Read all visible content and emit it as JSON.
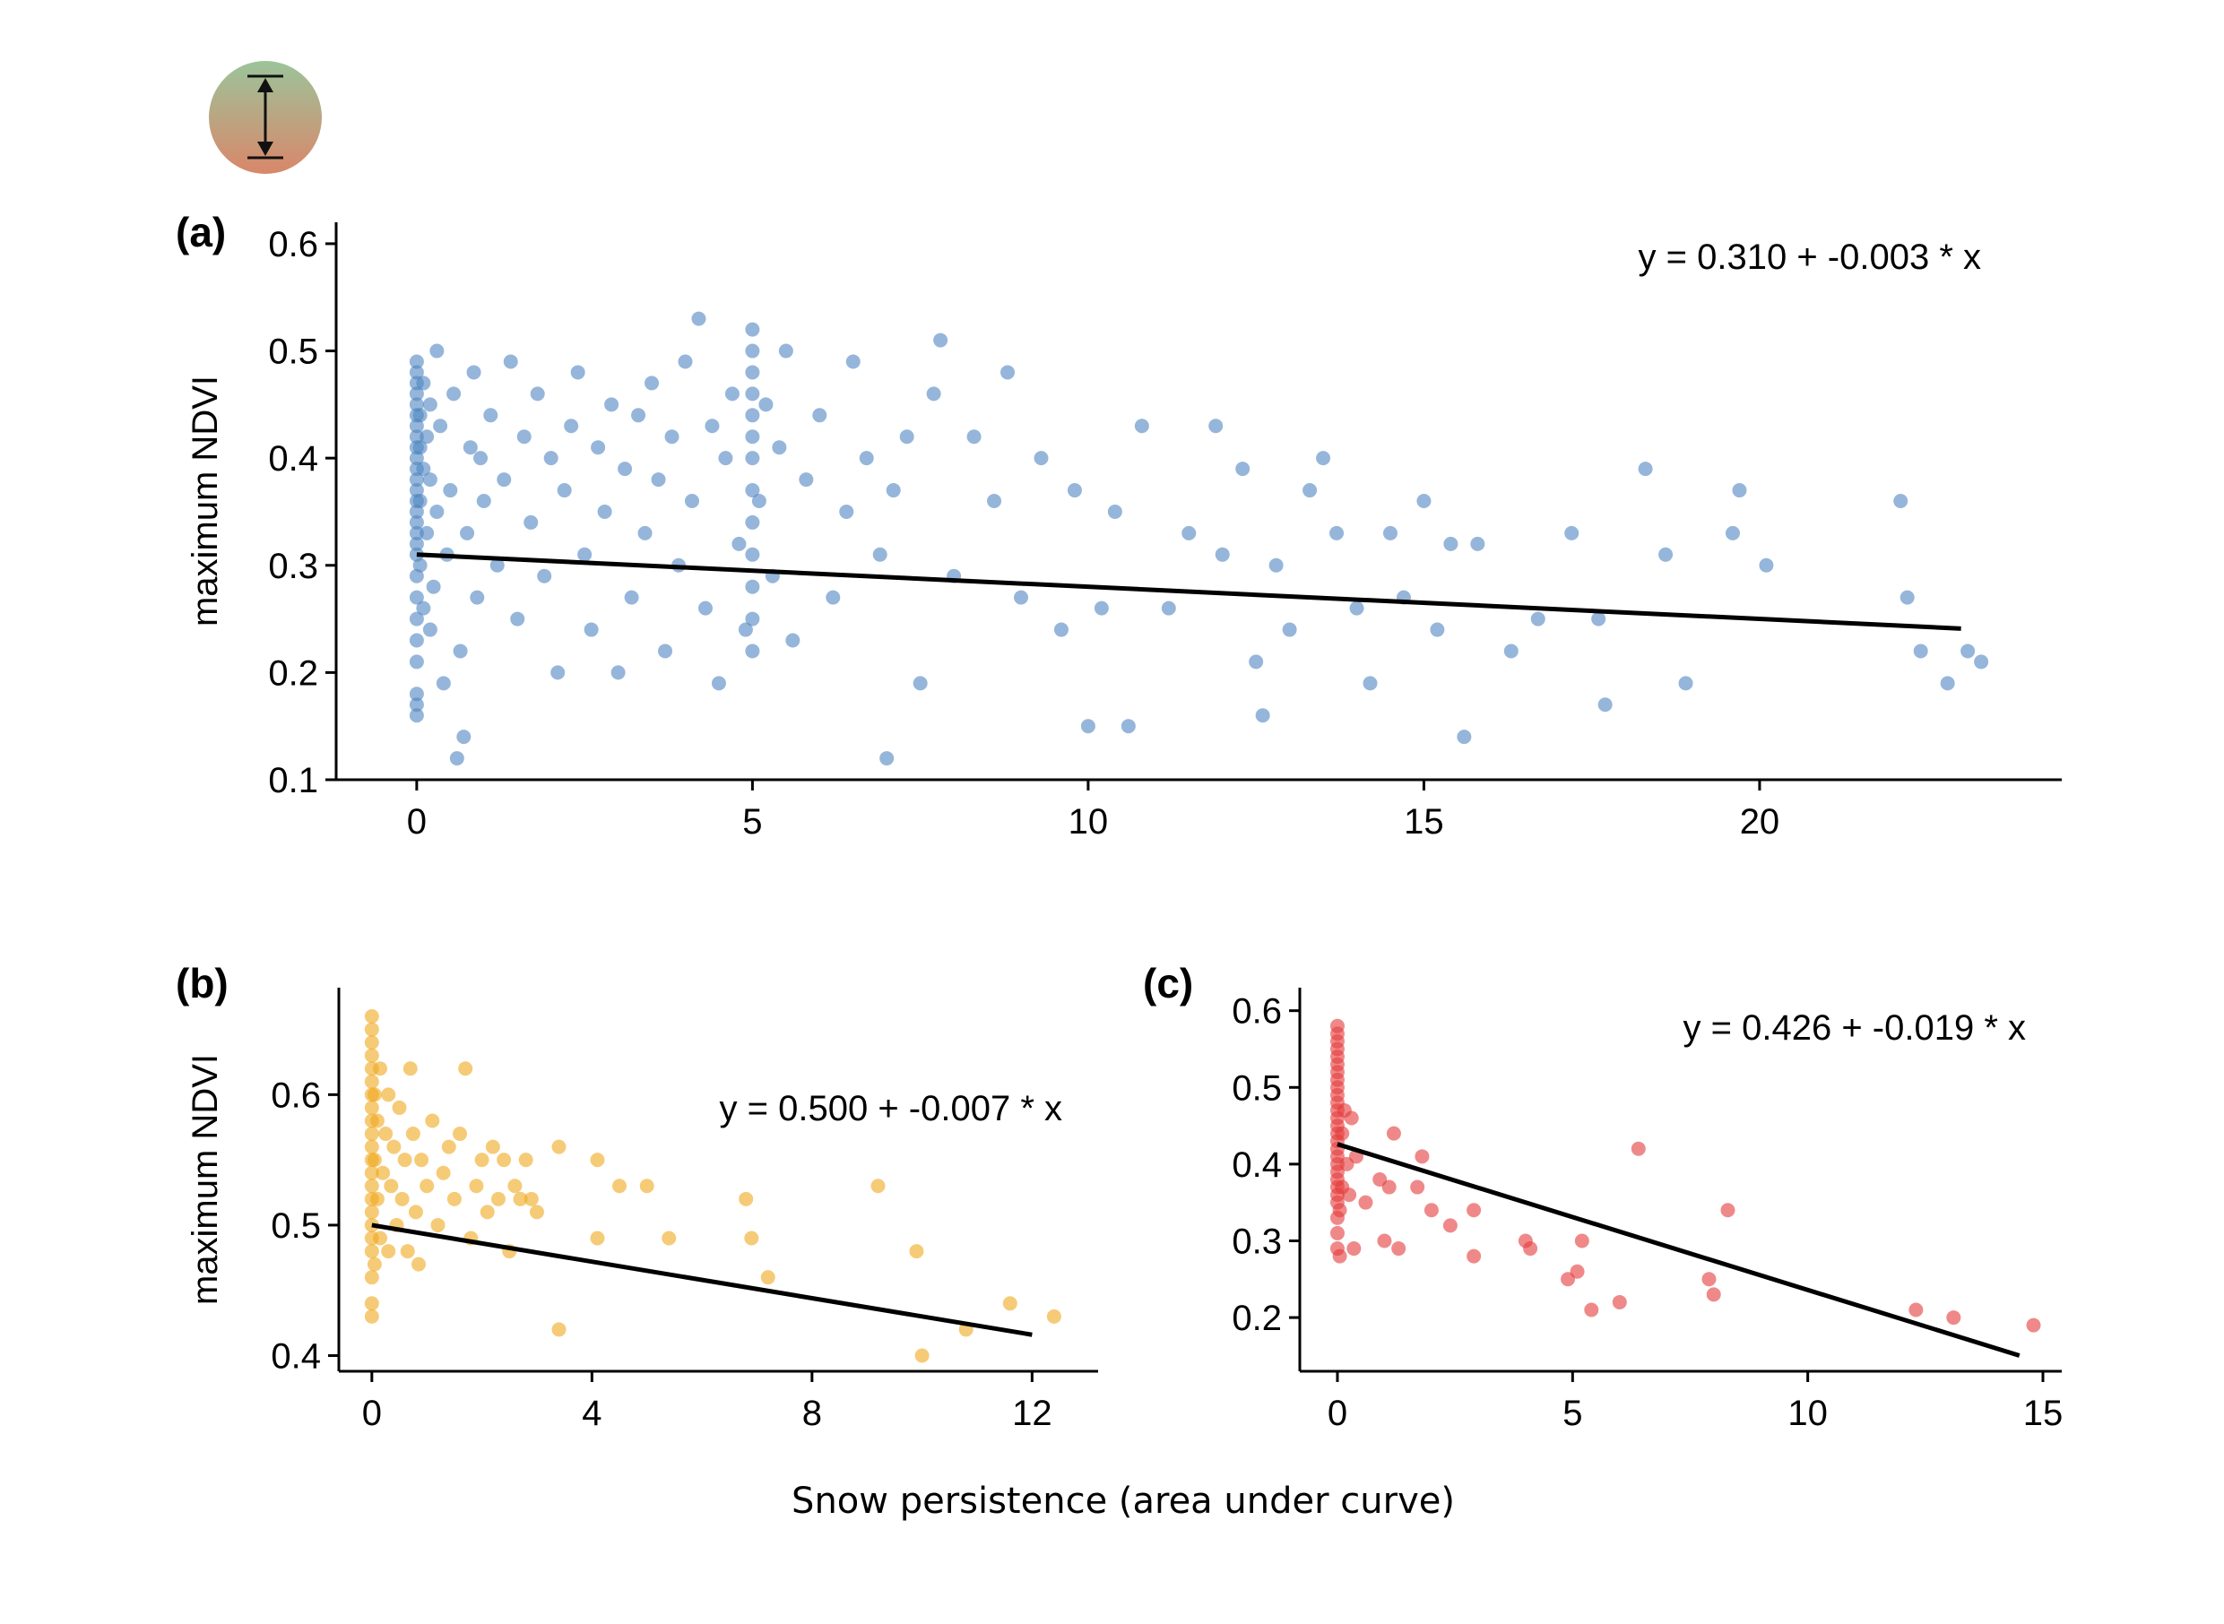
{
  "icon": {
    "name": "height-range-icon",
    "gradient_top": "#9cc49a",
    "gradient_bottom": "#d9876a"
  },
  "xlabel": "Snow persistence (area under curve)",
  "chart_data": [
    {
      "id": "a",
      "panel_label": "(a)",
      "type": "scatter",
      "color": "#4f86c2",
      "ylabel": "maximum NDVI",
      "equation": "y = 0.310 + -0.003 * x",
      "xlim": [
        -1.2,
        24.5
      ],
      "ylim": [
        0.1,
        0.62
      ],
      "xticks": [
        0,
        5,
        10,
        15,
        20
      ],
      "yticks": [
        0.1,
        0.2,
        0.3,
        0.4,
        0.5,
        0.6
      ],
      "yticklabels": [
        "0.1",
        "0.2",
        "0.3",
        "0.4",
        "0.5",
        "0.6"
      ],
      "fit": {
        "intercept": 0.31,
        "slope": -0.003,
        "x_range": [
          0,
          23
        ]
      },
      "points": [
        [
          0,
          0.16
        ],
        [
          0,
          0.17
        ],
        [
          0,
          0.18
        ],
        [
          0,
          0.21
        ],
        [
          0,
          0.23
        ],
        [
          0,
          0.25
        ],
        [
          0,
          0.27
        ],
        [
          0,
          0.29
        ],
        [
          0,
          0.31
        ],
        [
          0,
          0.32
        ],
        [
          0,
          0.33
        ],
        [
          0,
          0.34
        ],
        [
          0,
          0.35
        ],
        [
          0,
          0.36
        ],
        [
          0,
          0.37
        ],
        [
          0,
          0.38
        ],
        [
          0,
          0.39
        ],
        [
          0,
          0.4
        ],
        [
          0,
          0.41
        ],
        [
          0,
          0.42
        ],
        [
          0,
          0.43
        ],
        [
          0,
          0.44
        ],
        [
          0,
          0.45
        ],
        [
          0,
          0.46
        ],
        [
          0,
          0.47
        ],
        [
          0,
          0.48
        ],
        [
          0,
          0.49
        ],
        [
          0.05,
          0.3
        ],
        [
          0.05,
          0.36
        ],
        [
          0.05,
          0.41
        ],
        [
          0.05,
          0.44
        ],
        [
          0.1,
          0.26
        ],
        [
          0.1,
          0.39
        ],
        [
          0.1,
          0.47
        ],
        [
          0.15,
          0.33
        ],
        [
          0.15,
          0.42
        ],
        [
          0.2,
          0.24
        ],
        [
          0.2,
          0.38
        ],
        [
          0.2,
          0.45
        ],
        [
          0.25,
          0.28
        ],
        [
          0.3,
          0.35
        ],
        [
          0.3,
          0.5
        ],
        [
          0.35,
          0.43
        ],
        [
          0.4,
          0.19
        ],
        [
          0.45,
          0.31
        ],
        [
          0.5,
          0.37
        ],
        [
          0.55,
          0.46
        ],
        [
          0.6,
          0.12
        ],
        [
          0.65,
          0.22
        ],
        [
          0.7,
          0.14
        ],
        [
          0.75,
          0.33
        ],
        [
          0.8,
          0.41
        ],
        [
          0.85,
          0.48
        ],
        [
          0.9,
          0.27
        ],
        [
          0.95,
          0.4
        ],
        [
          1.0,
          0.36
        ],
        [
          1.1,
          0.44
        ],
        [
          1.2,
          0.3
        ],
        [
          1.3,
          0.38
        ],
        [
          1.4,
          0.49
        ],
        [
          1.5,
          0.25
        ],
        [
          1.6,
          0.42
        ],
        [
          1.7,
          0.34
        ],
        [
          1.8,
          0.46
        ],
        [
          1.9,
          0.29
        ],
        [
          2.0,
          0.4
        ],
        [
          2.1,
          0.2
        ],
        [
          2.2,
          0.37
        ],
        [
          2.3,
          0.43
        ],
        [
          2.4,
          0.48
        ],
        [
          2.5,
          0.31
        ],
        [
          2.6,
          0.24
        ],
        [
          2.7,
          0.41
        ],
        [
          2.8,
          0.35
        ],
        [
          2.9,
          0.45
        ],
        [
          3.0,
          0.2
        ],
        [
          3.1,
          0.39
        ],
        [
          3.2,
          0.27
        ],
        [
          3.3,
          0.44
        ],
        [
          3.4,
          0.33
        ],
        [
          3.5,
          0.47
        ],
        [
          3.6,
          0.38
        ],
        [
          3.7,
          0.22
        ],
        [
          3.8,
          0.42
        ],
        [
          3.9,
          0.3
        ],
        [
          4.0,
          0.49
        ],
        [
          4.1,
          0.36
        ],
        [
          4.2,
          0.53
        ],
        [
          4.3,
          0.26
        ],
        [
          4.4,
          0.43
        ],
        [
          4.5,
          0.19
        ],
        [
          4.6,
          0.4
        ],
        [
          4.7,
          0.46
        ],
        [
          4.8,
          0.32
        ],
        [
          4.9,
          0.24
        ],
        [
          5,
          0.22
        ],
        [
          5,
          0.25
        ],
        [
          5,
          0.28
        ],
        [
          5,
          0.31
        ],
        [
          5,
          0.34
        ],
        [
          5,
          0.37
        ],
        [
          5,
          0.4
        ],
        [
          5,
          0.42
        ],
        [
          5,
          0.44
        ],
        [
          5,
          0.46
        ],
        [
          5,
          0.48
        ],
        [
          5,
          0.5
        ],
        [
          5,
          0.52
        ],
        [
          5.1,
          0.36
        ],
        [
          5.2,
          0.45
        ],
        [
          5.3,
          0.29
        ],
        [
          5.4,
          0.41
        ],
        [
          5.5,
          0.5
        ],
        [
          5.6,
          0.23
        ],
        [
          5.8,
          0.38
        ],
        [
          6.0,
          0.44
        ],
        [
          6.2,
          0.27
        ],
        [
          6.4,
          0.35
        ],
        [
          6.5,
          0.49
        ],
        [
          6.7,
          0.4
        ],
        [
          6.9,
          0.31
        ],
        [
          7.0,
          0.12
        ],
        [
          7.1,
          0.37
        ],
        [
          7.3,
          0.42
        ],
        [
          7.5,
          0.19
        ],
        [
          7.7,
          0.46
        ],
        [
          7.8,
          0.51
        ],
        [
          8.0,
          0.29
        ],
        [
          8.3,
          0.42
        ],
        [
          8.6,
          0.36
        ],
        [
          8.8,
          0.48
        ],
        [
          9.0,
          0.27
        ],
        [
          9.3,
          0.4
        ],
        [
          9.6,
          0.24
        ],
        [
          9.8,
          0.37
        ],
        [
          10.0,
          0.15
        ],
        [
          10.2,
          0.26
        ],
        [
          10.4,
          0.35
        ],
        [
          10.6,
          0.15
        ],
        [
          10.8,
          0.43
        ],
        [
          11.2,
          0.26
        ],
        [
          11.5,
          0.33
        ],
        [
          11.9,
          0.43
        ],
        [
          12.0,
          0.31
        ],
        [
          12.3,
          0.39
        ],
        [
          12.5,
          0.21
        ],
        [
          12.6,
          0.16
        ],
        [
          12.8,
          0.3
        ],
        [
          13.0,
          0.24
        ],
        [
          13.3,
          0.37
        ],
        [
          13.5,
          0.4
        ],
        [
          13.7,
          0.33
        ],
        [
          14.0,
          0.26
        ],
        [
          14.2,
          0.19
        ],
        [
          14.5,
          0.33
        ],
        [
          14.7,
          0.27
        ],
        [
          15.0,
          0.36
        ],
        [
          15.2,
          0.24
        ],
        [
          15.4,
          0.32
        ],
        [
          15.6,
          0.14
        ],
        [
          15.8,
          0.32
        ],
        [
          16.3,
          0.22
        ],
        [
          16.7,
          0.25
        ],
        [
          17.2,
          0.33
        ],
        [
          17.6,
          0.25
        ],
        [
          17.7,
          0.17
        ],
        [
          18.3,
          0.39
        ],
        [
          18.6,
          0.31
        ],
        [
          18.9,
          0.19
        ],
        [
          19.6,
          0.33
        ],
        [
          19.7,
          0.37
        ],
        [
          20.1,
          0.3
        ],
        [
          22.1,
          0.36
        ],
        [
          22.2,
          0.27
        ],
        [
          22.4,
          0.22
        ],
        [
          22.8,
          0.19
        ],
        [
          23.1,
          0.22
        ],
        [
          23.3,
          0.21
        ]
      ]
    },
    {
      "id": "b",
      "panel_label": "(b)",
      "type": "scatter",
      "color": "#f0a81c",
      "ylabel": "maximum NDVI",
      "equation": "y = 0.500 + -0.007 * x",
      "xlim": [
        -0.6,
        13.2
      ],
      "ylim": [
        0.388,
        0.682
      ],
      "xticks": [
        0,
        4,
        8,
        12
      ],
      "yticks": [
        0.4,
        0.5,
        0.6
      ],
      "yticklabels": [
        "0.4",
        "0.5",
        "0.6"
      ],
      "fit": {
        "intercept": 0.5,
        "slope": -0.007,
        "x_range": [
          0,
          12
        ]
      },
      "points": [
        [
          0,
          0.43
        ],
        [
          0,
          0.44
        ],
        [
          0,
          0.46
        ],
        [
          0,
          0.48
        ],
        [
          0,
          0.49
        ],
        [
          0,
          0.5
        ],
        [
          0,
          0.51
        ],
        [
          0,
          0.52
        ],
        [
          0,
          0.53
        ],
        [
          0,
          0.54
        ],
        [
          0,
          0.55
        ],
        [
          0,
          0.56
        ],
        [
          0,
          0.57
        ],
        [
          0,
          0.58
        ],
        [
          0,
          0.59
        ],
        [
          0,
          0.6
        ],
        [
          0,
          0.61
        ],
        [
          0,
          0.62
        ],
        [
          0,
          0.63
        ],
        [
          0,
          0.64
        ],
        [
          0,
          0.65
        ],
        [
          0,
          0.66
        ],
        [
          0.05,
          0.47
        ],
        [
          0.05,
          0.55
        ],
        [
          0.05,
          0.6
        ],
        [
          0.1,
          0.52
        ],
        [
          0.1,
          0.58
        ],
        [
          0.15,
          0.49
        ],
        [
          0.15,
          0.62
        ],
        [
          0.2,
          0.54
        ],
        [
          0.25,
          0.57
        ],
        [
          0.3,
          0.48
        ],
        [
          0.3,
          0.6
        ],
        [
          0.35,
          0.53
        ],
        [
          0.4,
          0.56
        ],
        [
          0.45,
          0.5
        ],
        [
          0.5,
          0.59
        ],
        [
          0.55,
          0.52
        ],
        [
          0.6,
          0.55
        ],
        [
          0.65,
          0.48
        ],
        [
          0.7,
          0.62
        ],
        [
          0.75,
          0.57
        ],
        [
          0.8,
          0.51
        ],
        [
          0.85,
          0.47
        ],
        [
          0.9,
          0.55
        ],
        [
          1.0,
          0.53
        ],
        [
          1.1,
          0.58
        ],
        [
          1.2,
          0.5
        ],
        [
          1.3,
          0.54
        ],
        [
          1.4,
          0.56
        ],
        [
          1.5,
          0.52
        ],
        [
          1.6,
          0.57
        ],
        [
          1.7,
          0.62
        ],
        [
          1.8,
          0.49
        ],
        [
          1.9,
          0.53
        ],
        [
          2.0,
          0.55
        ],
        [
          2.1,
          0.51
        ],
        [
          2.2,
          0.56
        ],
        [
          2.3,
          0.52
        ],
        [
          2.4,
          0.55
        ],
        [
          2.5,
          0.48
        ],
        [
          2.6,
          0.53
        ],
        [
          2.7,
          0.52
        ],
        [
          2.8,
          0.55
        ],
        [
          2.9,
          0.52
        ],
        [
          3.0,
          0.51
        ],
        [
          3.4,
          0.56
        ],
        [
          3.4,
          0.42
        ],
        [
          4.1,
          0.49
        ],
        [
          4.1,
          0.55
        ],
        [
          4.5,
          0.53
        ],
        [
          5.0,
          0.53
        ],
        [
          5.4,
          0.49
        ],
        [
          6.8,
          0.52
        ],
        [
          6.9,
          0.49
        ],
        [
          7.2,
          0.46
        ],
        [
          9.2,
          0.53
        ],
        [
          9.9,
          0.48
        ],
        [
          10.0,
          0.4
        ],
        [
          10.8,
          0.42
        ],
        [
          11.6,
          0.44
        ],
        [
          12.4,
          0.43
        ]
      ]
    },
    {
      "id": "c",
      "panel_label": "(c)",
      "type": "scatter",
      "color": "#e53a3a",
      "ylabel": "",
      "equation": "y = 0.426 + -0.019 * x",
      "xlim": [
        -0.8,
        15.4
      ],
      "ylim": [
        0.13,
        0.63
      ],
      "xticks": [
        0,
        5,
        10,
        15
      ],
      "yticks": [
        0.2,
        0.3,
        0.4,
        0.5,
        0.6
      ],
      "yticklabels": [
        "0.2",
        "0.3",
        "0.4",
        "0.5",
        "0.6"
      ],
      "fit": {
        "intercept": 0.426,
        "slope": -0.019,
        "x_range": [
          0,
          14.5
        ]
      },
      "points": [
        [
          0,
          0.29
        ],
        [
          0,
          0.31
        ],
        [
          0,
          0.33
        ],
        [
          0,
          0.35
        ],
        [
          0,
          0.36
        ],
        [
          0,
          0.37
        ],
        [
          0,
          0.38
        ],
        [
          0,
          0.39
        ],
        [
          0,
          0.4
        ],
        [
          0,
          0.41
        ],
        [
          0,
          0.42
        ],
        [
          0,
          0.43
        ],
        [
          0,
          0.44
        ],
        [
          0,
          0.45
        ],
        [
          0,
          0.46
        ],
        [
          0,
          0.47
        ],
        [
          0,
          0.48
        ],
        [
          0,
          0.49
        ],
        [
          0,
          0.5
        ],
        [
          0,
          0.51
        ],
        [
          0,
          0.52
        ],
        [
          0,
          0.53
        ],
        [
          0,
          0.54
        ],
        [
          0,
          0.55
        ],
        [
          0,
          0.56
        ],
        [
          0,
          0.57
        ],
        [
          0,
          0.58
        ],
        [
          0.05,
          0.28
        ],
        [
          0.05,
          0.34
        ],
        [
          0.1,
          0.44
        ],
        [
          0.1,
          0.37
        ],
        [
          0.15,
          0.47
        ],
        [
          0.2,
          0.4
        ],
        [
          0.25,
          0.36
        ],
        [
          0.3,
          0.46
        ],
        [
          0.35,
          0.29
        ],
        [
          0.4,
          0.41
        ],
        [
          0.6,
          0.35
        ],
        [
          0.9,
          0.38
        ],
        [
          1.0,
          0.3
        ],
        [
          1.1,
          0.37
        ],
        [
          1.2,
          0.44
        ],
        [
          1.3,
          0.29
        ],
        [
          1.7,
          0.37
        ],
        [
          1.8,
          0.41
        ],
        [
          2.0,
          0.34
        ],
        [
          2.4,
          0.32
        ],
        [
          2.9,
          0.28
        ],
        [
          2.9,
          0.34
        ],
        [
          4.0,
          0.3
        ],
        [
          4.1,
          0.29
        ],
        [
          4.9,
          0.25
        ],
        [
          5.1,
          0.26
        ],
        [
          5.2,
          0.3
        ],
        [
          5.4,
          0.21
        ],
        [
          6.0,
          0.22
        ],
        [
          6.4,
          0.42
        ],
        [
          7.9,
          0.25
        ],
        [
          8.0,
          0.23
        ],
        [
          8.3,
          0.34
        ],
        [
          12.3,
          0.21
        ],
        [
          13.1,
          0.2
        ],
        [
          14.8,
          0.19
        ]
      ]
    }
  ]
}
